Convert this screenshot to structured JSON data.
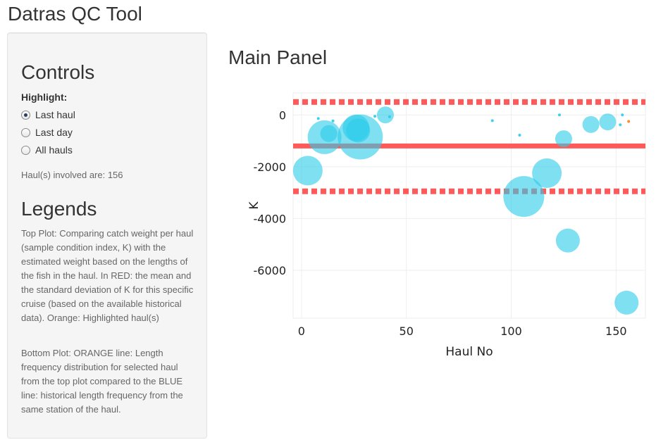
{
  "app": {
    "title": "Datras QC Tool"
  },
  "sidebar": {
    "controls_heading": "Controls",
    "highlight_label": "Highlight:",
    "options": [
      {
        "label": "Last haul",
        "checked": true
      },
      {
        "label": "Last day",
        "checked": false
      },
      {
        "label": "All hauls",
        "checked": false
      }
    ],
    "haul_note": "Haul(s) involved are: 156",
    "legends_heading": "Legends",
    "legend_top": "Top Plot: Comparing catch weight per haul (sample condition index, K) with the estimated weight based on the lengths of the fish in the haul. In RED: the mean and the standard deviation of K for this specific cruise (based on the available historical data). Orange: Highlighted haul(s)",
    "legend_bottom": "Bottom Plot: ORANGE line: Length frequency distribution for selected haul from the top plot compared to the BLUE line: historical length frequency from the same station of the haul."
  },
  "main": {
    "title": "Main Panel"
  },
  "chart_data": {
    "type": "scatter",
    "xlabel": "Haul No",
    "ylabel": "K",
    "xlim": [
      -4,
      164
    ],
    "ylim": [
      -7850,
      850
    ],
    "xticks": [
      0,
      50,
      100,
      150
    ],
    "yticks": [
      0,
      -2000,
      -4000,
      -6000
    ],
    "mean_line": -1200,
    "sd_lines": [
      500,
      -2950
    ],
    "colors": {
      "points": "#29cbea",
      "red_lines": "#ff5a5a",
      "highlight": "#ff7f0e"
    },
    "series": [
      {
        "points": [
          {
            "x": 3,
            "y": -2150,
            "size": 21
          },
          {
            "x": 8,
            "y": -140,
            "size": 2
          },
          {
            "x": 11,
            "y": -860,
            "size": 24
          },
          {
            "x": 13,
            "y": -720,
            "size": 12
          },
          {
            "x": 15,
            "y": -230,
            "size": 2
          },
          {
            "x": 26,
            "y": -500,
            "size": 19
          },
          {
            "x": 27,
            "y": -600,
            "size": 17
          },
          {
            "x": 28,
            "y": -850,
            "size": 32
          },
          {
            "x": 35,
            "y": -50,
            "size": 2
          },
          {
            "x": 40,
            "y": 0,
            "size": 12
          },
          {
            "x": 42,
            "y": -70,
            "size": 2
          },
          {
            "x": 91,
            "y": -220,
            "size": 2
          },
          {
            "x": 106,
            "y": -3150,
            "size": 29
          },
          {
            "x": 104,
            "y": -780,
            "size": 2
          },
          {
            "x": 117,
            "y": -2250,
            "size": 21
          },
          {
            "x": 123,
            "y": 0,
            "size": 2
          },
          {
            "x": 125,
            "y": -920,
            "size": 12
          },
          {
            "x": 127,
            "y": -4850,
            "size": 17
          },
          {
            "x": 138,
            "y": -370,
            "size": 12
          },
          {
            "x": 146,
            "y": -270,
            "size": 12
          },
          {
            "x": 152,
            "y": -380,
            "size": 2
          },
          {
            "x": 153,
            "y": 0,
            "size": 2
          },
          {
            "x": 155,
            "y": -7250,
            "size": 17
          }
        ]
      },
      {
        "name": "highlight",
        "points": [
          {
            "x": 156,
            "y": -250,
            "size": 2
          }
        ]
      }
    ]
  }
}
